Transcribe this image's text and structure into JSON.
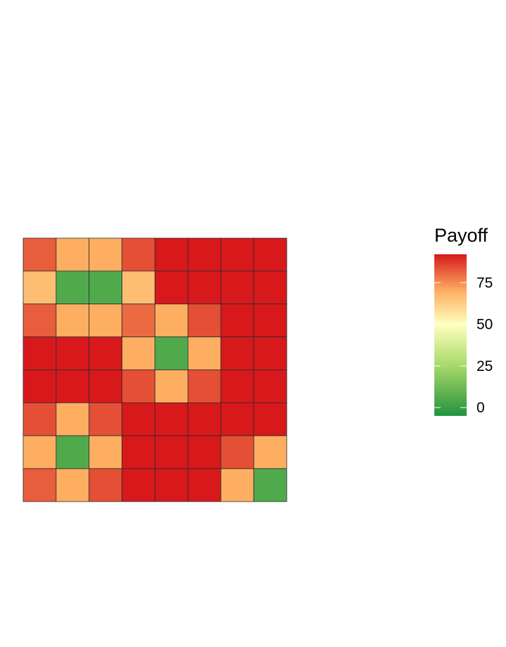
{
  "chart_data": {
    "type": "heatmap",
    "title": "",
    "xlabel": "",
    "ylabel": "",
    "n_rows": 8,
    "n_cols": 8,
    "values": [
      [
        82,
        70,
        70,
        84,
        92,
        92,
        92,
        92
      ],
      [
        66,
        5,
        5,
        66,
        92,
        92,
        92,
        92
      ],
      [
        82,
        70,
        70,
        80,
        70,
        84,
        92,
        92
      ],
      [
        92,
        92,
        92,
        70,
        5,
        70,
        92,
        92
      ],
      [
        92,
        92,
        92,
        84,
        70,
        84,
        92,
        92
      ],
      [
        84,
        70,
        84,
        92,
        92,
        92,
        92,
        92
      ],
      [
        70,
        5,
        70,
        92,
        92,
        92,
        84,
        70
      ],
      [
        82,
        70,
        84,
        92,
        92,
        92,
        70,
        5
      ]
    ],
    "color_scale": {
      "min": -5,
      "max": 92,
      "stops": [
        {
          "value": -5,
          "color": "#1a9641"
        },
        {
          "value": 0,
          "color": "#3a9e44"
        },
        {
          "value": 25,
          "color": "#a6d96a"
        },
        {
          "value": 50,
          "color": "#ffffbf"
        },
        {
          "value": 70,
          "color": "#fdae61"
        },
        {
          "value": 92,
          "color": "#d7191c"
        }
      ]
    },
    "legend": {
      "title": "Payoff",
      "ticks": [
        0,
        25,
        50,
        75
      ],
      "tick_labels": [
        "0",
        "25",
        "50",
        "75"
      ],
      "position": "right"
    },
    "grid": false
  }
}
